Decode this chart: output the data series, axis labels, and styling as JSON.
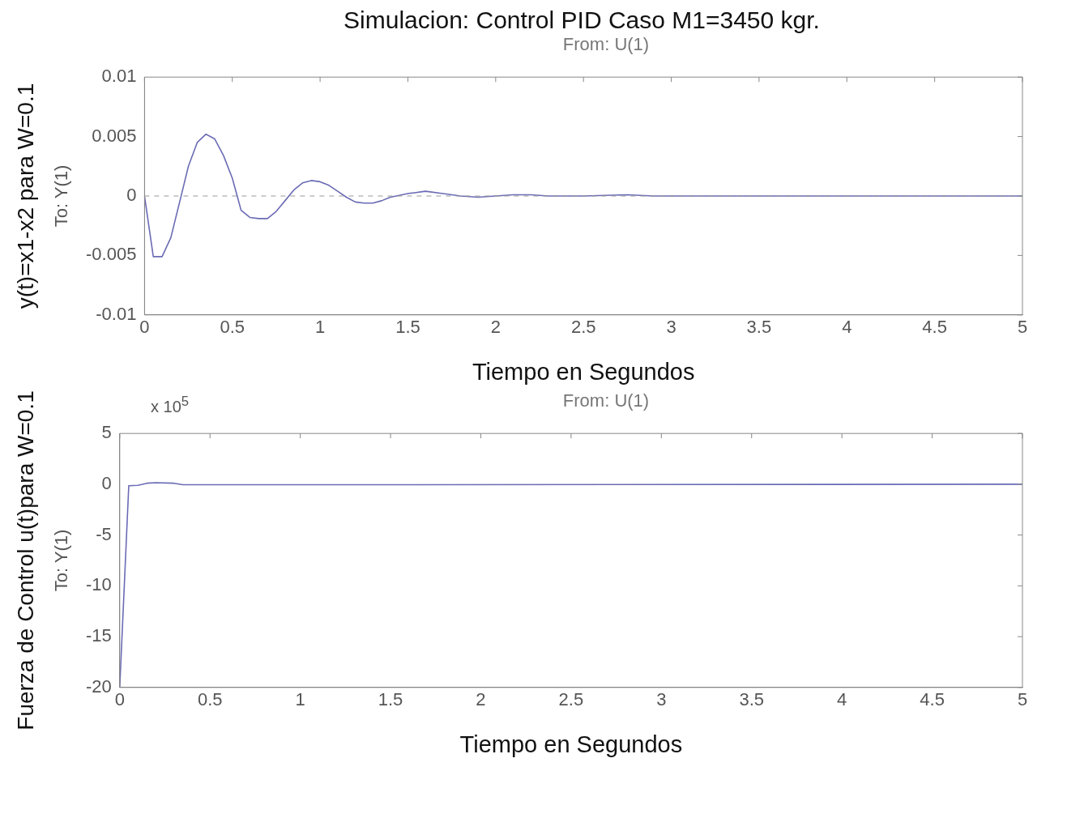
{
  "chart_data": [
    {
      "type": "line",
      "title": "Simulacion: Control PID Caso M1=3450 kgr.",
      "subtitle": "From: U(1)",
      "xlabel": "Tiempo en Segundos",
      "ylabel": "y(t)=x1-x2 para W=0.1",
      "annotations": [
        "To: Y(1)"
      ],
      "series": [
        {
          "color": "#6b6bb5",
          "x": [
            0,
            0.05,
            0.1,
            0.15,
            0.2,
            0.25,
            0.3,
            0.35,
            0.4,
            0.45,
            0.5,
            0.55,
            0.6,
            0.65,
            0.7,
            0.75,
            0.8,
            0.85,
            0.9,
            0.95,
            1.0,
            1.05,
            1.1,
            1.15,
            1.2,
            1.25,
            1.3,
            1.35,
            1.4,
            1.5,
            1.6,
            1.7,
            1.8,
            1.9,
            2.0,
            2.1,
            2.2,
            2.3,
            2.5,
            2.75,
            2.9,
            5
          ],
          "values": [
            0,
            -0.0051,
            -0.0051,
            -0.0035,
            -0.0005,
            0.0025,
            0.0045,
            0.0052,
            0.0048,
            0.0034,
            0.0015,
            -0.0012,
            -0.0018,
            -0.0019,
            -0.0019,
            -0.0013,
            -0.0004,
            0.0005,
            0.0011,
            0.0013,
            0.0012,
            0.0009,
            0.0004,
            -0.0001,
            -0.0005,
            -0.0006,
            -0.0006,
            -0.0004,
            -0.0001,
            0.0002,
            0.0004,
            0.0002,
            0,
            -0.0001,
            0,
            0.0001,
            0.0001,
            0,
            0,
            0.0001,
            0,
            0
          ]
        }
      ],
      "xlim": [
        0,
        5
      ],
      "xticks": [
        0,
        0.5,
        1,
        1.5,
        2,
        2.5,
        3,
        3.5,
        4,
        4.5,
        5
      ],
      "ylim": [
        -0.01,
        0.01
      ],
      "yticks": [
        -0.01,
        -0.005,
        0,
        0.005,
        0.01
      ],
      "grid": false,
      "legend": false,
      "marker": "none",
      "line_style": "solid",
      "ref_lines": [
        {
          "axis": "y",
          "value": 0,
          "color": "#999999",
          "line_style": "dashed"
        }
      ]
    },
    {
      "type": "line",
      "subtitle": "From: U(1)",
      "xlabel": "Tiempo en Segundos",
      "ylabel": "Fuerza de Control u(t)para W=0.1",
      "annotations": [
        "To: Y(1)",
        "x 10$^{5}$"
      ],
      "series": [
        {
          "color": "#6b6bb5",
          "x": [
            0,
            0.05,
            0.1,
            0.15,
            0.2,
            0.3,
            0.35,
            1.5,
            5
          ],
          "values": [
            -20,
            -0.15,
            -0.1,
            0.1,
            0.15,
            0.1,
            -0.05,
            -0.05,
            0
          ]
        }
      ],
      "xlim": [
        0,
        5
      ],
      "xticks": [
        0,
        0.5,
        1,
        1.5,
        2,
        2.5,
        3,
        3.5,
        4,
        4.5,
        5
      ],
      "ylim": [
        -20,
        5
      ],
      "yticks": [
        -20,
        -15,
        -10,
        -5,
        0,
        5
      ],
      "grid": false,
      "legend": false,
      "marker": "none",
      "line_style": "solid"
    }
  ]
}
